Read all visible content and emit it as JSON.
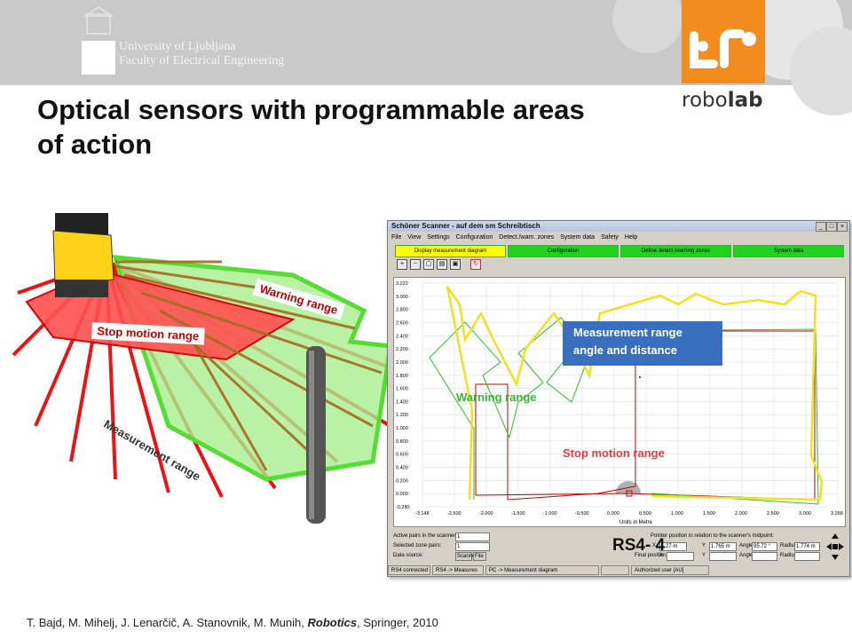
{
  "header": {
    "university_line1": "University of Ljubljana",
    "university_line2": "Faculty of Electrical Engineering",
    "brand": "robolab",
    "brand_prefix": "robo",
    "brand_suffix": "lab",
    "accent_color": "#f28c1f"
  },
  "slide": {
    "title": "Optical sensors with programmable areas of action"
  },
  "scene": {
    "warning_label": "Warning range",
    "stop_label": "Stop motion range",
    "measurement_label": "Measurement range",
    "colors": {
      "warning": "#88e070",
      "stop": "#ff4040"
    }
  },
  "app": {
    "title": "Schöner Scanner - auf dem sm Schreibtisch",
    "menu": [
      "File",
      "View",
      "Settings",
      "Configuration",
      "Detect./warn. zones",
      "System data",
      "Safety",
      "Help"
    ],
    "tabs": [
      "Display measurement diagram",
      "Configuration",
      "Define detect./warning zones",
      "System data"
    ],
    "toolbar_icons": [
      "zoom-in-icon",
      "zoom-out-icon",
      "zoom-fit-icon",
      "print-icon",
      "save-icon",
      "refresh-icon"
    ],
    "plot": {
      "y_ticks": [
        "3.222",
        "3.000",
        "2.800",
        "2.600",
        "2.400",
        "2.200",
        "2.000",
        "1.800",
        "1.600",
        "1.400",
        "1.200",
        "1.000",
        "0.800",
        "0.600",
        "0.400",
        "0.200",
        "0.000",
        "-0.280"
      ],
      "x_ticks": [
        "-3.148",
        "-2.500",
        "-2.000",
        "-1.500",
        "-1.000",
        "-0.500",
        "0.000",
        "0.500",
        "1.000",
        "1.500",
        "2.000",
        "2.500",
        "3.000",
        "3.268"
      ],
      "x_label": "Units in Metre"
    },
    "bottom": {
      "active_pairs_label": "Active pairs in the scanner:",
      "active_pairs_value": "1",
      "selected_pairs_label": "Selected zone pairs:",
      "selected_pairs_value": "1",
      "data_source_label": "Data source:",
      "scanner_button": "Scanner",
      "file_button": "File",
      "pointer_label": "Pointer position in relation to the scanner's midpoint:",
      "x_label": "X",
      "x_value": "...27 m",
      "y_label": "Y",
      "y_value": "1.765 m",
      "angle_label": "Angle",
      "angle_value": "95.72 °",
      "radius_label": "Radius",
      "radius_value": "1.774 m",
      "final_position_label": "Final position:"
    },
    "status": [
      "RS4 connected",
      "RS4 -> Measures",
      "PC -> Measurement diagram",
      "",
      "Authorized user [AU]"
    ]
  },
  "overlays": {
    "measurement_box_line1": "Measurement range",
    "measurement_box_line2": "angle and distance",
    "warning_label": "Warning range",
    "stop_label": "Stop motion range",
    "device_label": "RS4- 4"
  },
  "footer": {
    "authors": "T. Bajd, M. Mihelj, J. Lenarčič, A. Stanovnik, M. Munih,",
    "book": "Robotics",
    "publisher": ", Springer, 2010"
  }
}
